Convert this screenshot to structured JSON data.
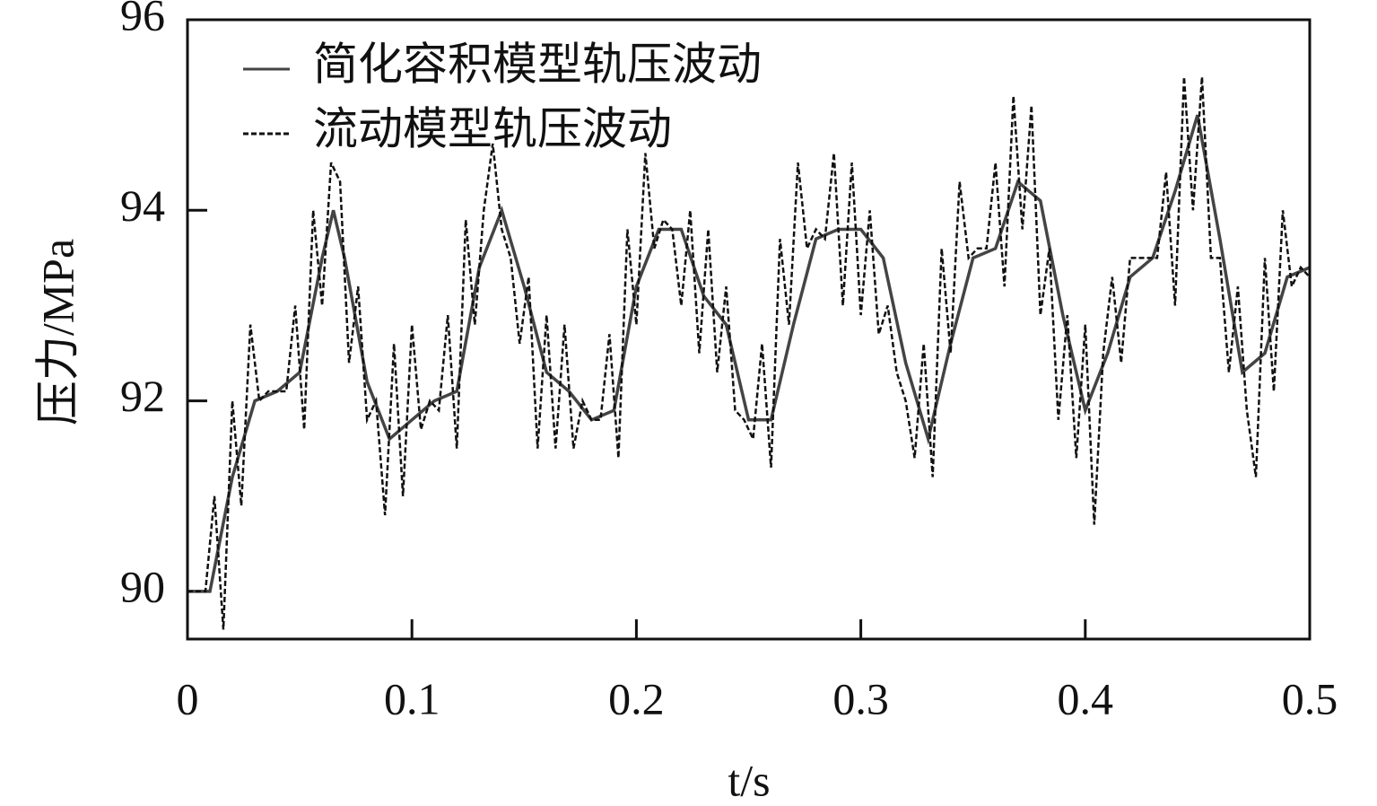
{
  "chart_data": {
    "type": "line",
    "xlabel": "t/s",
    "ylabel": "压力/MPa",
    "xlim": [
      0,
      0.5
    ],
    "xticks": [
      0,
      0.1,
      0.2,
      0.3,
      0.4,
      0.5
    ],
    "ylim": [
      89.5,
      96
    ],
    "yticks": [
      90,
      92,
      94,
      96
    ],
    "legend": "upper left",
    "series": [
      {
        "name": "简化容积模型轨压波动",
        "color": "#444444",
        "style": "solid",
        "x": [
          0,
          0.01,
          0.02,
          0.03,
          0.04,
          0.05,
          0.06,
          0.065,
          0.07,
          0.08,
          0.09,
          0.1,
          0.11,
          0.12,
          0.13,
          0.14,
          0.15,
          0.16,
          0.17,
          0.18,
          0.19,
          0.2,
          0.21,
          0.22,
          0.23,
          0.24,
          0.25,
          0.26,
          0.27,
          0.28,
          0.29,
          0.3,
          0.31,
          0.32,
          0.33,
          0.34,
          0.35,
          0.36,
          0.37,
          0.38,
          0.39,
          0.4,
          0.41,
          0.42,
          0.43,
          0.44,
          0.45,
          0.46,
          0.47,
          0.48,
          0.49,
          0.5
        ],
        "values": [
          90.0,
          90.0,
          91.2,
          92.0,
          92.1,
          92.3,
          93.5,
          94.0,
          93.5,
          92.2,
          91.6,
          91.8,
          92.0,
          92.1,
          93.4,
          94.0,
          93.2,
          92.3,
          92.1,
          91.8,
          91.9,
          93.2,
          93.8,
          93.8,
          93.1,
          92.8,
          91.8,
          91.8,
          92.8,
          93.7,
          93.8,
          93.8,
          93.5,
          92.4,
          91.6,
          92.6,
          93.5,
          93.6,
          94.3,
          94.1,
          92.9,
          91.9,
          92.5,
          93.3,
          93.5,
          94.2,
          95.0,
          93.7,
          92.3,
          92.5,
          93.3,
          93.4
        ]
      },
      {
        "name": "流动模型轨压波动",
        "color": "#111111",
        "style": "dashed",
        "x": [
          0,
          0.004,
          0.008,
          0.012,
          0.016,
          0.02,
          0.024,
          0.028,
          0.032,
          0.036,
          0.04,
          0.044,
          0.048,
          0.052,
          0.056,
          0.06,
          0.064,
          0.068,
          0.072,
          0.076,
          0.08,
          0.084,
          0.088,
          0.092,
          0.096,
          0.1,
          0.104,
          0.108,
          0.112,
          0.116,
          0.12,
          0.124,
          0.128,
          0.132,
          0.136,
          0.14,
          0.144,
          0.148,
          0.152,
          0.156,
          0.16,
          0.164,
          0.168,
          0.172,
          0.176,
          0.18,
          0.184,
          0.188,
          0.192,
          0.196,
          0.2,
          0.204,
          0.208,
          0.212,
          0.216,
          0.22,
          0.224,
          0.228,
          0.232,
          0.236,
          0.24,
          0.244,
          0.248,
          0.252,
          0.256,
          0.26,
          0.264,
          0.268,
          0.272,
          0.276,
          0.28,
          0.284,
          0.288,
          0.292,
          0.296,
          0.3,
          0.304,
          0.308,
          0.312,
          0.316,
          0.32,
          0.324,
          0.328,
          0.332,
          0.336,
          0.34,
          0.344,
          0.348,
          0.352,
          0.356,
          0.36,
          0.364,
          0.368,
          0.372,
          0.376,
          0.38,
          0.384,
          0.388,
          0.392,
          0.396,
          0.4,
          0.404,
          0.408,
          0.412,
          0.416,
          0.42,
          0.424,
          0.428,
          0.432,
          0.436,
          0.44,
          0.444,
          0.448,
          0.452,
          0.456,
          0.46,
          0.464,
          0.468,
          0.472,
          0.476,
          0.48,
          0.484,
          0.488,
          0.492,
          0.496,
          0.5
        ],
        "values": [
          90.0,
          90.0,
          90.0,
          91.0,
          89.6,
          92.0,
          90.9,
          92.8,
          92.0,
          92.1,
          92.1,
          92.1,
          93.0,
          91.7,
          94.0,
          93.0,
          94.5,
          94.3,
          92.4,
          93.2,
          91.8,
          92.0,
          90.8,
          92.6,
          91.0,
          92.8,
          91.7,
          92.0,
          91.9,
          92.9,
          91.5,
          93.9,
          92.8,
          94.0,
          94.7,
          93.8,
          93.5,
          92.6,
          93.3,
          91.5,
          92.9,
          91.5,
          92.8,
          91.5,
          92.0,
          91.8,
          91.8,
          92.7,
          91.4,
          93.8,
          92.8,
          94.6,
          93.6,
          93.9,
          93.8,
          93.0,
          94.0,
          92.5,
          93.8,
          92.3,
          93.2,
          91.9,
          91.8,
          91.6,
          92.6,
          91.3,
          93.7,
          92.8,
          94.5,
          93.6,
          93.8,
          93.7,
          94.6,
          93.0,
          94.5,
          92.9,
          94.0,
          92.7,
          93.0,
          92.3,
          92.0,
          91.4,
          92.6,
          91.2,
          93.6,
          92.5,
          94.3,
          93.5,
          93.6,
          93.6,
          94.5,
          93.2,
          95.2,
          93.8,
          95.1,
          92.9,
          93.6,
          91.8,
          92.9,
          91.4,
          92.8,
          90.7,
          92.5,
          93.3,
          92.4,
          93.5,
          93.5,
          93.5,
          93.5,
          94.4,
          93.0,
          95.4,
          94.0,
          95.4,
          93.5,
          93.5,
          92.3,
          93.2,
          91.9,
          91.2,
          93.5,
          92.1,
          94.0,
          93.2,
          93.4,
          93.3
        ]
      }
    ]
  }
}
